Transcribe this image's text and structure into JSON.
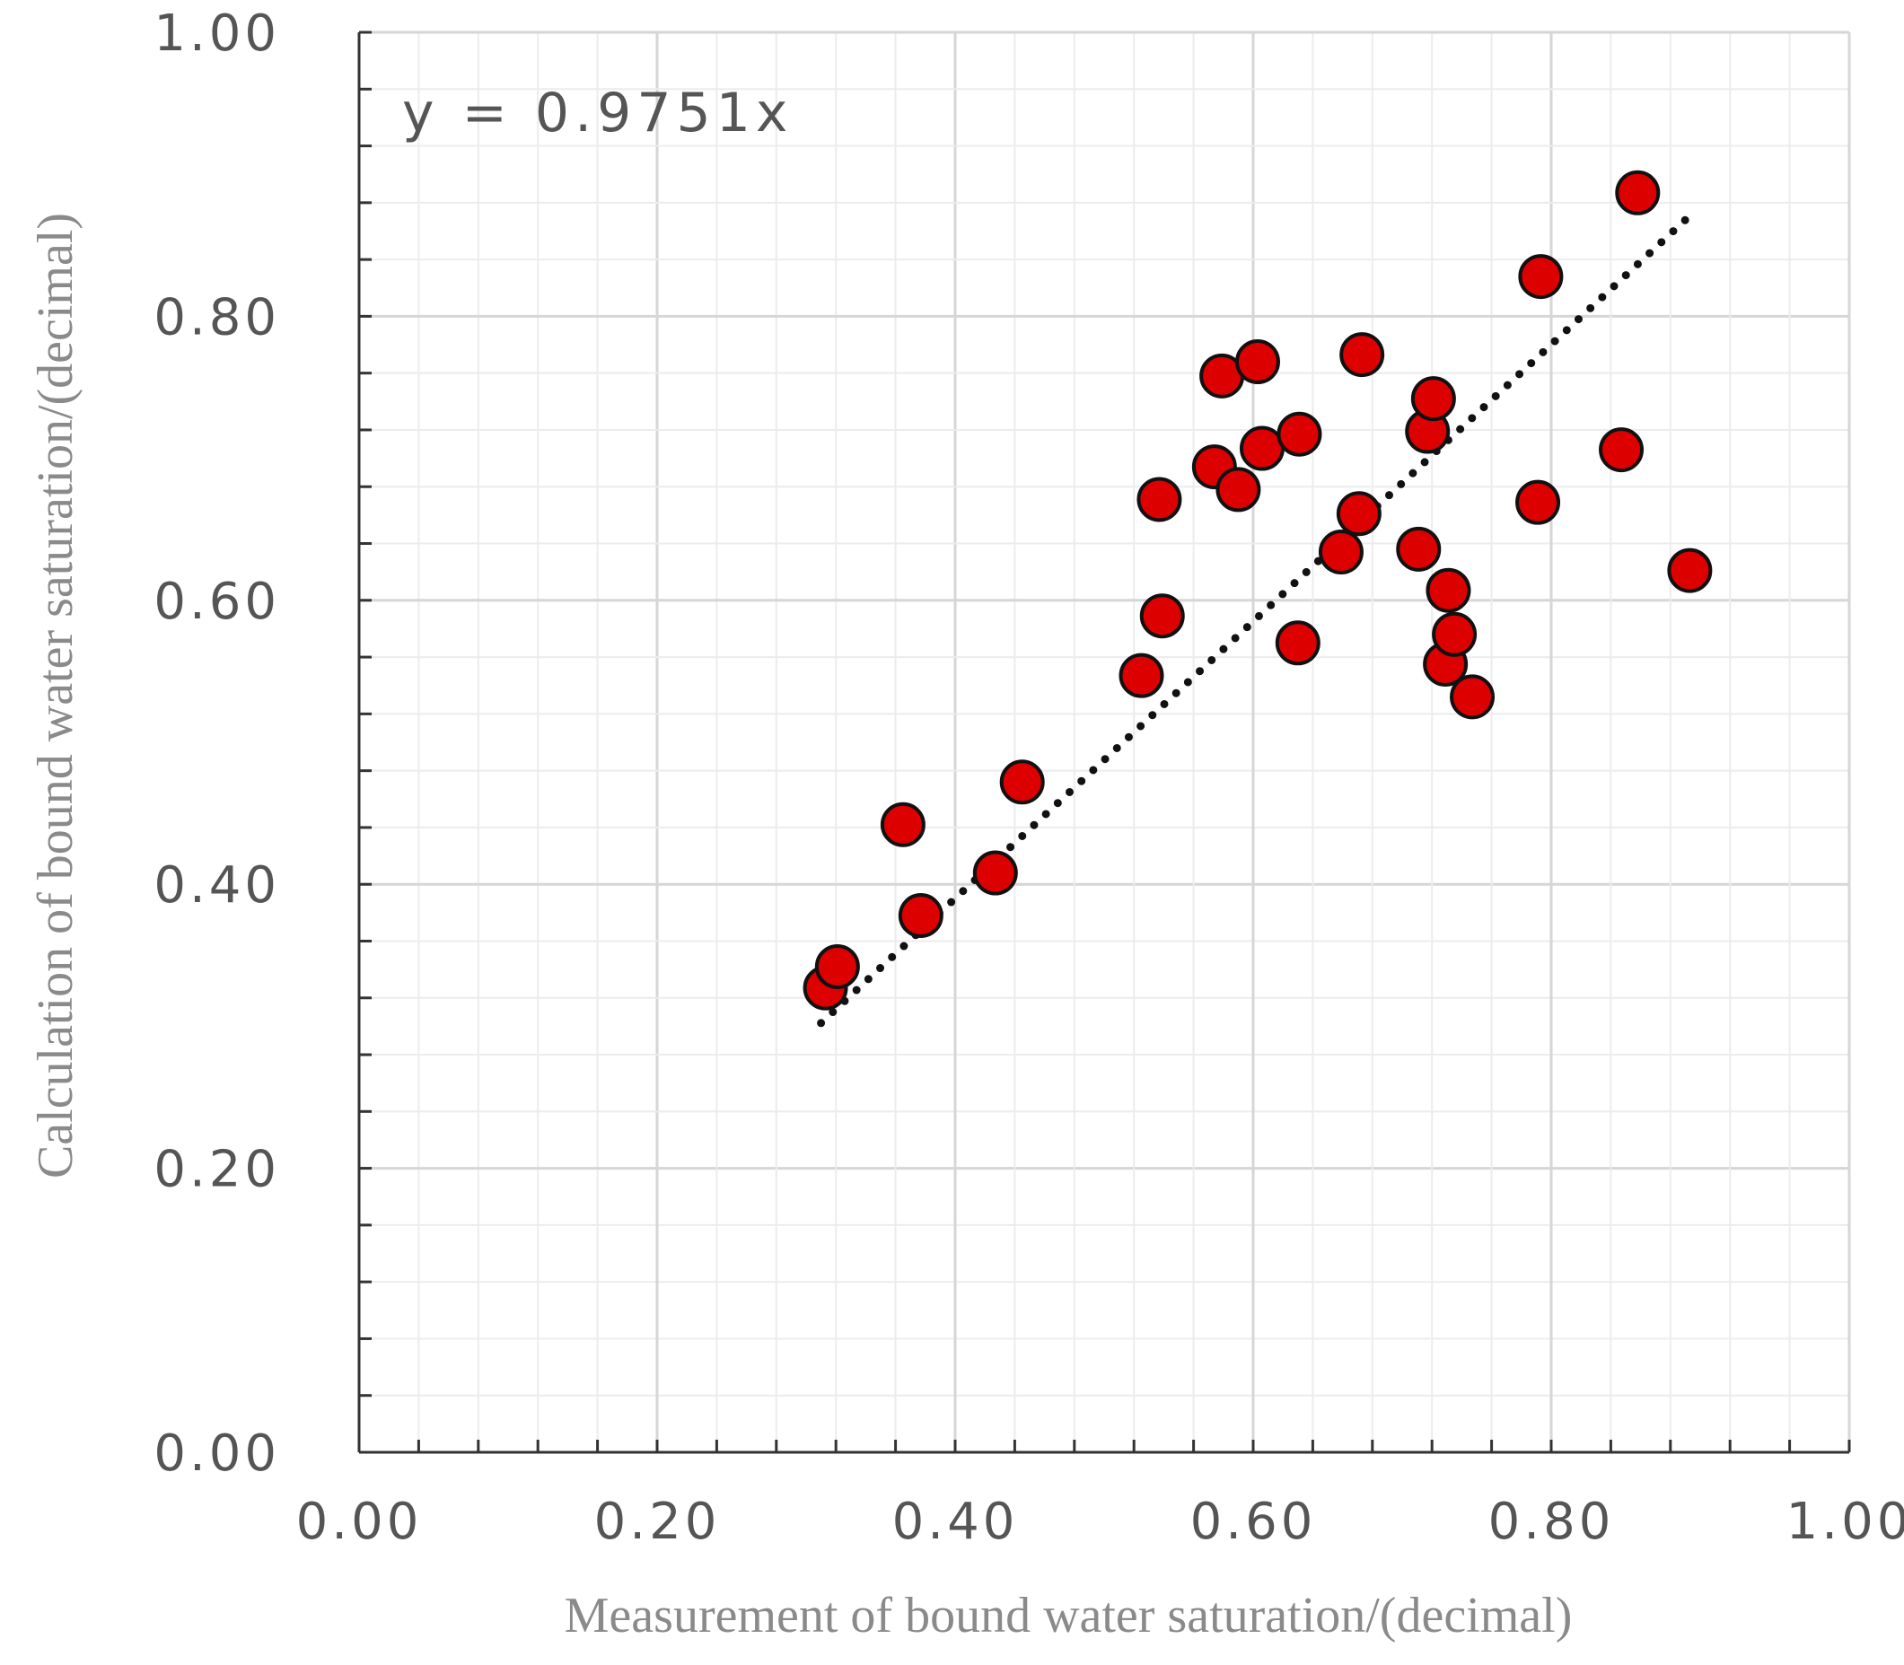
{
  "chart_data": {
    "type": "scatter",
    "xlabel": "Measurement of bound water saturation/(decimal)",
    "ylabel": "Calculation of bound water saturation/(decimal)",
    "xlim": [
      0,
      1
    ],
    "ylim": [
      0,
      1
    ],
    "x_ticks": [
      "0.00",
      "0.20",
      "0.40",
      "0.60",
      "0.80",
      "1.00"
    ],
    "y_ticks": [
      "0.00",
      "0.20",
      "0.40",
      "0.60",
      "0.80",
      "1.00"
    ],
    "grid": true,
    "annotation": "y = 0.9751x",
    "trendline": {
      "style": "dotted",
      "slope": 0.9751,
      "x_range": [
        0.31,
        0.89
      ]
    },
    "marker_color": "#dd0000",
    "marker_edge_color": "#111111",
    "points": [
      {
        "x": 0.313,
        "y": 0.327
      },
      {
        "x": 0.321,
        "y": 0.342
      },
      {
        "x": 0.365,
        "y": 0.442
      },
      {
        "x": 0.377,
        "y": 0.378
      },
      {
        "x": 0.427,
        "y": 0.408
      },
      {
        "x": 0.445,
        "y": 0.472
      },
      {
        "x": 0.525,
        "y": 0.547
      },
      {
        "x": 0.539,
        "y": 0.589
      },
      {
        "x": 0.537,
        "y": 0.671
      },
      {
        "x": 0.574,
        "y": 0.694
      },
      {
        "x": 0.579,
        "y": 0.758
      },
      {
        "x": 0.59,
        "y": 0.678
      },
      {
        "x": 0.603,
        "y": 0.768
      },
      {
        "x": 0.606,
        "y": 0.707
      },
      {
        "x": 0.63,
        "y": 0.57
      },
      {
        "x": 0.631,
        "y": 0.717
      },
      {
        "x": 0.659,
        "y": 0.634
      },
      {
        "x": 0.671,
        "y": 0.661
      },
      {
        "x": 0.673,
        "y": 0.773
      },
      {
        "x": 0.711,
        "y": 0.636
      },
      {
        "x": 0.717,
        "y": 0.719
      },
      {
        "x": 0.721,
        "y": 0.742
      },
      {
        "x": 0.729,
        "y": 0.555
      },
      {
        "x": 0.731,
        "y": 0.607
      },
      {
        "x": 0.735,
        "y": 0.576
      },
      {
        "x": 0.747,
        "y": 0.532
      },
      {
        "x": 0.791,
        "y": 0.669
      },
      {
        "x": 0.793,
        "y": 0.828
      },
      {
        "x": 0.847,
        "y": 0.706
      },
      {
        "x": 0.858,
        "y": 0.887
      },
      {
        "x": 0.893,
        "y": 0.621
      }
    ]
  }
}
